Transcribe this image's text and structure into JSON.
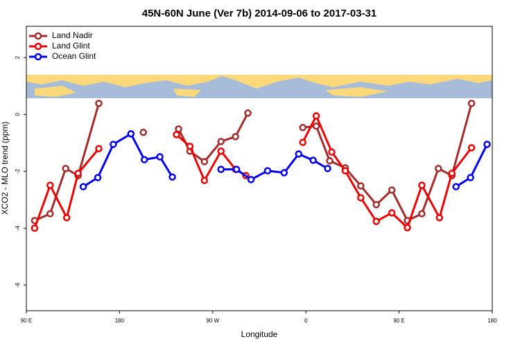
{
  "chart_data": {
    "type": "line",
    "title": "45N-60N June (Ver 7b)   2014-09-06 to 2017-03-31",
    "x_label": "Longitude",
    "y_label": "XCO2 - MLO trend (ppm)",
    "xlim": [
      90,
      540
    ],
    "xticks": [
      {
        "value": 90,
        "label": "90 E"
      },
      180,
      {
        "value": 270,
        "label": "90 W"
      },
      {
        "value": 360,
        "label": "0"
      },
      {
        "value": 450,
        "label": "90 E"
      },
      {
        "value": 540,
        "label": "180"
      }
    ],
    "ylim": [
      -6.9,
      3.1
    ],
    "yticks": [
      -6,
      -4,
      -2,
      0,
      2
    ],
    "legend": "top-left",
    "series": [
      {
        "name": "Land Nadir",
        "color": "#a52a2a",
        "x": [
          98,
          113,
          128,
          140,
          160,
          null,
          203,
          null,
          237,
          248,
          262,
          278,
          292,
          304,
          null,
          357,
          370,
          383,
          398,
          413,
          428,
          443,
          458,
          472,
          488,
          501,
          520
        ],
        "values": [
          -3.73,
          -3.49,
          -1.9,
          -2.15,
          0.39,
          null,
          -0.63,
          null,
          -0.51,
          -1.29,
          -1.66,
          -0.95,
          -0.78,
          0.05,
          null,
          -0.46,
          -0.41,
          -1.63,
          -1.88,
          -2.51,
          -3.17,
          -2.66,
          -3.73,
          -3.49,
          -1.9,
          -2.15,
          0.39
        ]
      },
      {
        "name": "Land Glint",
        "color": "#ee0000",
        "x": [
          98,
          113,
          129,
          140,
          160,
          null,
          235,
          248,
          262,
          278,
          292,
          302,
          null,
          357,
          370,
          385,
          398,
          413,
          428,
          443,
          458,
          472,
          489,
          501,
          520
        ],
        "values": [
          -4.0,
          -2.49,
          -3.63,
          -2.07,
          -1.2,
          null,
          -0.71,
          -1.12,
          -2.32,
          -1.29,
          -1.93,
          -2.15,
          null,
          -0.98,
          -0.05,
          -1.32,
          -1.98,
          -2.93,
          -3.76,
          -3.46,
          -3.98,
          -2.49,
          -3.63,
          -2.07,
          -1.17
        ]
      },
      {
        "name": "Ocean Glint",
        "color": "#0000ee",
        "x": [
          145,
          159,
          174,
          191,
          204,
          219,
          231,
          null,
          278,
          293,
          307,
          323,
          339,
          353,
          367,
          381,
          null,
          505,
          519,
          535
        ],
        "values": [
          -2.54,
          -2.22,
          -1.05,
          -0.68,
          -1.59,
          -1.49,
          -2.2,
          null,
          -1.93,
          -1.93,
          -2.29,
          -1.98,
          -2.05,
          -1.39,
          -1.61,
          -1.9,
          null,
          -2.54,
          -2.22,
          -1.05
        ]
      }
    ]
  }
}
